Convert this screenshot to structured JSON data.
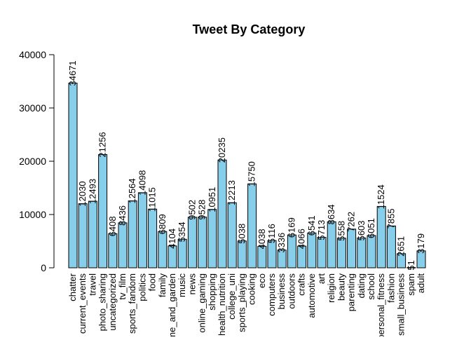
{
  "chart_data": {
    "type": "bar",
    "title": "Tweet By Category",
    "xlabel": "",
    "ylabel": "",
    "ylim": [
      0,
      40000
    ],
    "yticks": [
      0,
      10000,
      20000,
      30000,
      40000
    ],
    "bar_color": "#87ceeb",
    "grid": false,
    "categories": [
      "chatter",
      "current_events",
      "travel",
      "photo_sharing",
      "uncategorized",
      "tv_film",
      "sports_fandom",
      "politics",
      "food",
      "family",
      "home_and_garden",
      "music",
      "news",
      "online_gaming",
      "shopping",
      "health_nutrition",
      "college_uni",
      "sports_playing",
      "cooking",
      "eco",
      "computers",
      "business",
      "outdoors",
      "crafts",
      "automotive",
      "art",
      "religion",
      "beauty",
      "parenting",
      "dating",
      "school",
      "personal_fitness",
      "fashion",
      "small_business",
      "spam",
      "adult"
    ],
    "values": [
      34671,
      12030,
      12493,
      21256,
      6408,
      8436,
      12564,
      14098,
      11015,
      6809,
      4104,
      5354,
      9502,
      9528,
      10951,
      20235,
      12213,
      5038,
      15750,
      4038,
      5116,
      3336,
      6169,
      4066,
      6541,
      5713,
      8634,
      5558,
      7262,
      5603,
      6051,
      11524,
      7855,
      2651,
      51,
      3179
    ]
  }
}
